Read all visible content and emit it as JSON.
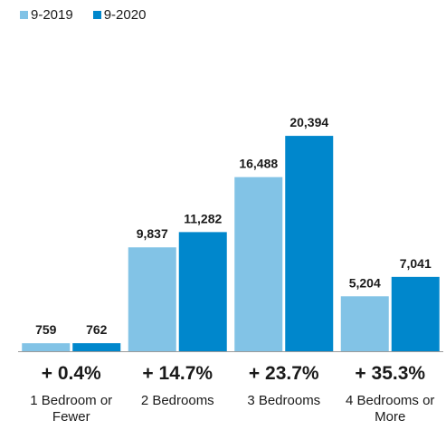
{
  "colors": {
    "series_2019": "#82c3e6",
    "series_2020": "#0087cc",
    "axis": "#9a9a9a"
  },
  "chart_data": {
    "type": "bar",
    "categories": [
      [
        "1 Bedroom or",
        "Fewer"
      ],
      [
        "2 Bedrooms"
      ],
      [
        "3 Bedrooms"
      ],
      [
        "4 Bedrooms or",
        "More"
      ]
    ],
    "series": [
      {
        "name": "9-2019",
        "values": [
          759,
          9837,
          16488,
          5204
        ],
        "labels": [
          "759",
          "9,837",
          "16,488",
          "5,204"
        ]
      },
      {
        "name": "9-2020",
        "values": [
          762,
          11282,
          20394,
          7041
        ],
        "labels": [
          "762",
          "11,282",
          "20,394",
          "7,041"
        ]
      }
    ],
    "changes": [
      "+ 0.4%",
      "+ 14.7%",
      "+ 23.7%",
      "+ 35.3%"
    ],
    "ylim": [
      0,
      30000
    ],
    "legend_position": "top-left",
    "grid": false
  }
}
